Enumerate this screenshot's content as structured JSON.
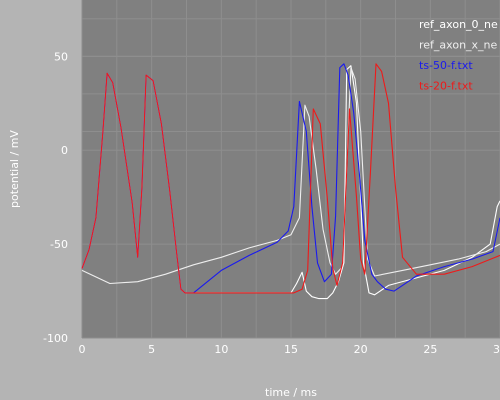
{
  "chart_data": {
    "type": "line",
    "title": "",
    "xlabel": "time / ms",
    "ylabel": "potential / mV",
    "xlim": [
      0,
      30
    ],
    "ylim": [
      -100,
      80
    ],
    "xticks": [
      "0",
      "5",
      "10",
      "15",
      "20",
      "25",
      "30"
    ],
    "yticks": [
      "50",
      "0",
      "-50",
      "-100"
    ],
    "grid": true,
    "legend_position": "top-right",
    "colors": {
      "plot_bg": "#808080",
      "page_bg": "#b4b4b4",
      "grid": "#8e8e8e",
      "text": "#ffffff"
    },
    "series": [
      {
        "name": "ref_axon_0_ne",
        "color": "#ffffff",
        "x": [
          0,
          0.5,
          1.0,
          1.5,
          1.8,
          2.2,
          2.8,
          3.6,
          4.0,
          4.3,
          4.6,
          5.1,
          5.7,
          6.3,
          6.8,
          7.1,
          7.4,
          8,
          10,
          12,
          14,
          15.0,
          15.4,
          15.8,
          16.1,
          16.5,
          17.0,
          17.6,
          18.0,
          18.4,
          18.8,
          19.0,
          19.3,
          19.7,
          20.2,
          20.6,
          21.0,
          22,
          24,
          26,
          28,
          29.3,
          29.8,
          30
        ],
        "y": [
          -63,
          -53,
          -36,
          10,
          41,
          36,
          12,
          -28,
          -57,
          -20,
          40,
          37,
          14,
          -22,
          -55,
          -74,
          -76,
          -76,
          -76,
          -76,
          -76,
          -76,
          -71,
          -65,
          -75,
          -78,
          -79,
          -79,
          -76,
          -70,
          -60,
          43,
          45,
          25,
          -60,
          -76,
          -77,
          -72,
          -68,
          -64,
          -57,
          -50,
          -30,
          -27
        ]
      },
      {
        "name": "ref_axon_x_ne",
        "color": "#eeeeee",
        "x": [
          0,
          2,
          4,
          6,
          8,
          10,
          12,
          14,
          15.0,
          15.6,
          16.0,
          16.3,
          16.8,
          17.3,
          17.8,
          18.2,
          18.7,
          19.3,
          19.6,
          20.0,
          20.5,
          21,
          23,
          25,
          27,
          29,
          30
        ],
        "y": [
          -64,
          -71,
          -70,
          -66,
          -61,
          -57,
          -52,
          -48,
          -45,
          -36,
          24,
          18,
          -10,
          -42,
          -60,
          -66,
          -62,
          44,
          38,
          10,
          -58,
          -67,
          -64,
          -61,
          -58,
          -54,
          -50
        ]
      },
      {
        "name": "ts-50-f.txt",
        "color": "#1a1aee",
        "x": [
          0,
          0.5,
          1.0,
          1.5,
          1.8,
          2.2,
          2.8,
          3.6,
          4.0,
          4.3,
          4.6,
          5.1,
          5.7,
          6.3,
          6.8,
          7.1,
          7.4,
          8,
          10,
          12,
          14,
          14.8,
          15.2,
          15.6,
          16.1,
          16.5,
          16.9,
          17.4,
          17.9,
          18.2,
          18.5,
          18.8,
          19.1,
          19.5,
          19.9,
          20.3,
          20.8,
          21.2,
          21.8,
          22.4,
          23,
          24,
          26,
          28,
          29.5,
          30
        ],
        "y": [
          -63,
          -53,
          -36,
          10,
          41,
          36,
          12,
          -28,
          -57,
          -20,
          40,
          37,
          14,
          -22,
          -55,
          -74,
          -76,
          -76,
          -64,
          -56,
          -49,
          -43,
          -30,
          26,
          10,
          -30,
          -60,
          -70,
          -66,
          -35,
          44,
          46,
          40,
          20,
          -12,
          -48,
          -66,
          -70,
          -74,
          -75,
          -72,
          -67,
          -62,
          -58,
          -54,
          -36
        ]
      },
      {
        "name": "ts-20-f.txt",
        "color": "#ee1a1a",
        "x": [
          0,
          0.5,
          1.0,
          1.5,
          1.8,
          2.2,
          2.8,
          3.6,
          4.0,
          4.3,
          4.6,
          5.1,
          5.7,
          6.3,
          6.8,
          7.1,
          7.4,
          8,
          10,
          12,
          14,
          15.2,
          15.8,
          16.2,
          16.6,
          17.1,
          17.6,
          18.0,
          18.3,
          18.7,
          19.2,
          19.7,
          20.0,
          20.3,
          20.7,
          21.1,
          21.5,
          22.0,
          22.5,
          23,
          24,
          26,
          28,
          30
        ],
        "y": [
          -63,
          -53,
          -36,
          10,
          41,
          36,
          12,
          -28,
          -57,
          -20,
          40,
          37,
          14,
          -22,
          -55,
          -74,
          -76,
          -76,
          -76,
          -76,
          -76,
          -76,
          -74,
          -64,
          22,
          14,
          -25,
          -63,
          -72,
          -60,
          22,
          -25,
          -58,
          -66,
          -12,
          46,
          42,
          25,
          -20,
          -57,
          -66,
          -66,
          -62,
          -56
        ]
      }
    ]
  }
}
